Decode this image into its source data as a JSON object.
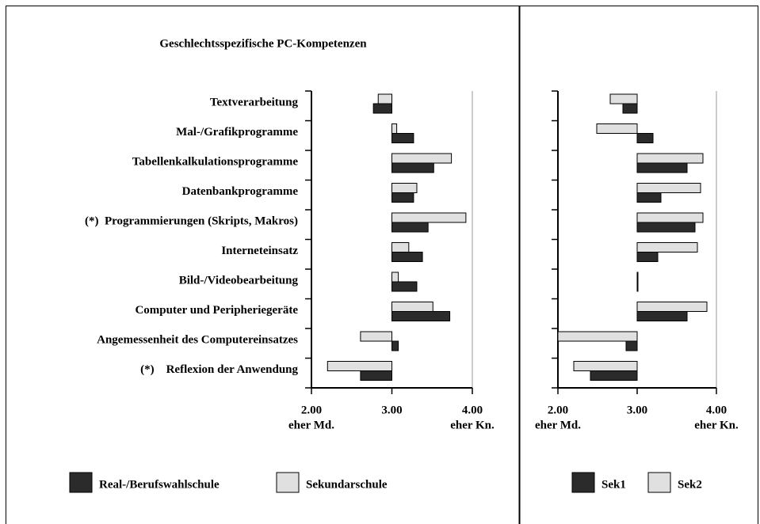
{
  "chart_data": [
    {
      "type": "bar",
      "title": "Geschlechtsspezifische PC-Kompetenzen",
      "categories": [
        "Textverarbeitung",
        "Mal-/Grafikprogramme",
        "Tabellenkalkulationsprogramme",
        "Datenbankprogramme",
        "(*)  Programmierungen (Skripts, Makros)",
        "Interneteinsatz",
        "Bild-/Videobearbeitung",
        "Computer und Peripheriegeräte",
        "Angemessenheit des Computereinsatzes",
        "(*)    Reflexion der Anwendung"
      ],
      "series": [
        {
          "name": "Real-/Berufswahlschule",
          "color": "#2b2b2b",
          "values": [
            2.77,
            3.27,
            3.52,
            3.27,
            3.45,
            3.38,
            3.31,
            3.72,
            3.08,
            2.61
          ]
        },
        {
          "name": "Sekundarschule",
          "color": "#e0e0e0",
          "values": [
            2.83,
            3.06,
            3.74,
            3.31,
            3.92,
            3.21,
            3.08,
            3.51,
            2.61,
            2.2
          ]
        }
      ],
      "bar_base": 3,
      "xlim": [
        2,
        4
      ],
      "xticks": [
        {
          "value": 2,
          "label": "2.00"
        },
        {
          "value": 3,
          "label": "3.00"
        },
        {
          "value": 4,
          "label": "4.00"
        }
      ],
      "xlabel_left": "eher Md.",
      "xlabel_right": "eher Kn."
    },
    {
      "type": "bar",
      "series": [
        {
          "name": "Sek1",
          "color": "#2b2b2b",
          "values": [
            2.82,
            3.2,
            3.63,
            3.3,
            3.73,
            3.26,
            3.01,
            3.63,
            2.86,
            2.41
          ]
        },
        {
          "name": "Sek2",
          "color": "#e0e0e0",
          "values": [
            2.66,
            2.49,
            3.83,
            3.8,
            3.83,
            3.76,
            3.01,
            3.88,
            2.0,
            2.2
          ]
        }
      ],
      "bar_base": 3,
      "xlim": [
        2,
        4
      ],
      "xticks": [
        {
          "value": 2,
          "label": "2.00"
        },
        {
          "value": 3,
          "label": "3.00"
        },
        {
          "value": 4,
          "label": "4.00"
        }
      ],
      "xlabel_left": "eher Md.",
      "xlabel_right": "eher Kn."
    }
  ]
}
